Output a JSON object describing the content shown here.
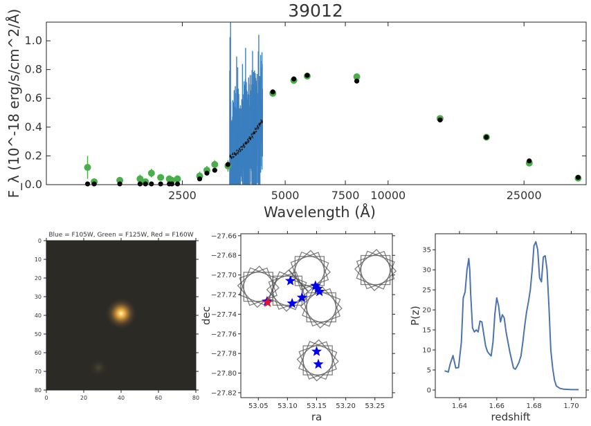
{
  "figure": {
    "title": "39012"
  },
  "chart_data": [
    {
      "panel": "sed",
      "type": "scatter",
      "title": "39012",
      "xlabel": "Wavelength (Å)",
      "ylabel": "F_λ (10^-18 erg/s/cm^2/Å)",
      "x_scale": "log",
      "xlim": [
        1000,
        38000
      ],
      "ylim": [
        0,
        1.13
      ],
      "x_ticks": [
        2500,
        5000,
        7500,
        10000,
        25000
      ],
      "x_tick_labels": [
        "2500",
        "5000",
        "7500",
        "10000",
        "25000"
      ],
      "y_ticks": [
        0.0,
        0.2,
        0.4,
        0.6,
        0.8,
        1.0
      ],
      "y_tick_labels": [
        "0.0",
        "0.2",
        "0.4",
        "0.6",
        "0.8",
        "1.0"
      ],
      "colors": {
        "observed": "#4aae4a",
        "model": "#000000",
        "spectrum": "#3a7fbf"
      },
      "series": [
        {
          "kind": "observed_photometry",
          "x": [
            1320,
            1380,
            1640,
            1880,
            1950,
            2030,
            2160,
            2290,
            2330,
            2420,
            2810,
            2950,
            3110,
            3400
          ],
          "y": [
            0.12,
            0.02,
            0.03,
            0.04,
            0.02,
            0.08,
            0.05,
            0.04,
            0.03,
            0.04,
            0.06,
            0.1,
            0.14,
            0.13
          ],
          "yerr": [
            0.08,
            0.02,
            0.02,
            0.03,
            0.02,
            0.03,
            0.02,
            0.02,
            0.02,
            0.02,
            0.03,
            0.03,
            0.03,
            0.04
          ]
        },
        {
          "kind": "model_photometry",
          "x": [
            1320,
            1380,
            1640,
            1880,
            1950,
            2030,
            2160,
            2290,
            2330,
            2420,
            2810,
            2950,
            3110,
            3400
          ],
          "y": [
            0.005,
            0.005,
            0.005,
            0.005,
            0.005,
            0.005,
            0.005,
            0.005,
            0.005,
            0.005,
            0.04,
            0.08,
            0.1,
            0.14
          ]
        },
        {
          "kind": "observed_photometry",
          "x": [
            4600,
            5300,
            5800,
            8100,
            14200,
            19400,
            25900,
            36000
          ],
          "y": [
            0.635,
            0.725,
            0.755,
            0.75,
            0.46,
            0.33,
            0.15,
            0.045
          ]
        },
        {
          "kind": "model_photometry",
          "x": [
            4600,
            5300,
            5800,
            8100,
            14200,
            19400,
            25900,
            36000
          ],
          "y": [
            0.645,
            0.735,
            0.76,
            0.72,
            0.45,
            0.33,
            0.165,
            0.05
          ]
        }
      ],
      "spectrum": {
        "x_range": [
          3440,
          4290
        ],
        "mean_start": 0.19,
        "mean_end": 0.45
      }
    },
    {
      "panel": "rgb_cutout",
      "type": "image",
      "title": "Blue = F105W, Green = F125W, Red = F160W",
      "xlim": [
        0,
        80
      ],
      "ylim": [
        80,
        0
      ],
      "x_ticks": [
        0,
        20,
        40,
        60,
        80
      ],
      "y_ticks": [
        0,
        10,
        20,
        30,
        40,
        50,
        60,
        70,
        80
      ],
      "sources": [
        {
          "x": 40,
          "y": 39
        },
        {
          "x": 28,
          "y": 68
        }
      ]
    },
    {
      "panel": "pointings",
      "type": "scatter",
      "xlabel": "ra",
      "ylabel": "dec",
      "xlim": [
        53.02,
        53.28
      ],
      "ylim": [
        -27.825,
        -27.658
      ],
      "x_ticks": [
        53.05,
        53.1,
        53.15,
        53.2,
        53.25
      ],
      "x_tick_labels": [
        "53.05",
        "53.10",
        "53.15",
        "53.20",
        "53.25"
      ],
      "y_ticks": [
        -27.66,
        -27.68,
        -27.7,
        -27.72,
        -27.74,
        -27.76,
        -27.78,
        -27.8,
        -27.82
      ],
      "y_tick_labels": [
        "−27.66",
        "−27.68",
        "−27.70",
        "−27.72",
        "−27.74",
        "−27.76",
        "−27.78",
        "−27.80",
        "−27.82"
      ],
      "colors": {
        "pointings": "#0000ee",
        "target": "#e8102a",
        "footprint": "#555555"
      },
      "pointings": {
        "ra": [
          53.065,
          53.105,
          53.108,
          53.125,
          53.148,
          53.152,
          53.155,
          53.15,
          53.153
        ],
        "dec": [
          -27.727,
          -27.706,
          -27.729,
          -27.723,
          -27.711,
          -27.714,
          -27.717,
          -27.778,
          -27.791
        ]
      },
      "target": {
        "ra": 53.066,
        "dec": -27.728
      },
      "footprints": [
        {
          "ra": 53.05,
          "dec": -27.712
        },
        {
          "ra": 53.1,
          "dec": -27.716
        },
        {
          "ra": 53.138,
          "dec": -27.696
        },
        {
          "ra": 53.158,
          "dec": -27.733
        },
        {
          "ra": 53.251,
          "dec": -27.695
        },
        {
          "ra": 53.152,
          "dec": -27.787
        }
      ]
    },
    {
      "panel": "pz",
      "type": "line",
      "xlabel": "redshift",
      "ylabel": "P(z)",
      "xlim": [
        1.627,
        1.708
      ],
      "ylim": [
        -1.9,
        39
      ],
      "x_ticks": [
        1.64,
        1.66,
        1.68,
        1.7
      ],
      "x_tick_labels": [
        "1.64",
        "1.66",
        "1.68",
        "1.70"
      ],
      "y_ticks": [
        0,
        5,
        10,
        15,
        20,
        25,
        30,
        35
      ],
      "y_tick_labels": [
        "0",
        "5",
        "10",
        "15",
        "20",
        "25",
        "30",
        "35"
      ],
      "colors": {
        "line": "#4c72b0"
      },
      "x": [
        1.632,
        1.634,
        1.635,
        1.6365,
        1.638,
        1.6395,
        1.641,
        1.642,
        1.643,
        1.644,
        1.645,
        1.6455,
        1.646,
        1.647,
        1.648,
        1.649,
        1.65,
        1.651,
        1.652,
        1.653,
        1.654,
        1.655,
        1.656,
        1.657,
        1.658,
        1.659,
        1.66,
        1.661,
        1.662,
        1.663,
        1.664,
        1.665,
        1.666,
        1.667,
        1.668,
        1.669,
        1.67,
        1.671,
        1.672,
        1.673,
        1.674,
        1.675,
        1.676,
        1.677,
        1.678,
        1.679,
        1.68,
        1.681,
        1.682,
        1.683,
        1.684,
        1.685,
        1.686,
        1.687,
        1.688,
        1.689,
        1.69,
        1.691,
        1.692,
        1.694,
        1.696,
        1.7,
        1.704
      ],
      "y": [
        4.8,
        4.5,
        6.5,
        8.6,
        5.5,
        5.6,
        12,
        23,
        24.5,
        30,
        32.8,
        30,
        24,
        15.5,
        14.5,
        15,
        14.5,
        17.2,
        17,
        14,
        11,
        9.6,
        9,
        8.5,
        12,
        19,
        23,
        21,
        17,
        18.8,
        18,
        14.5,
        12,
        9.5,
        7.5,
        5.5,
        5.2,
        6,
        7,
        8.5,
        12,
        16,
        19.5,
        22,
        25,
        30,
        36,
        37,
        35,
        28,
        27,
        33.2,
        33.5,
        30,
        21,
        10,
        5.5,
        2.5,
        1,
        0.4,
        0.2,
        0.1,
        0.1
      ]
    }
  ]
}
